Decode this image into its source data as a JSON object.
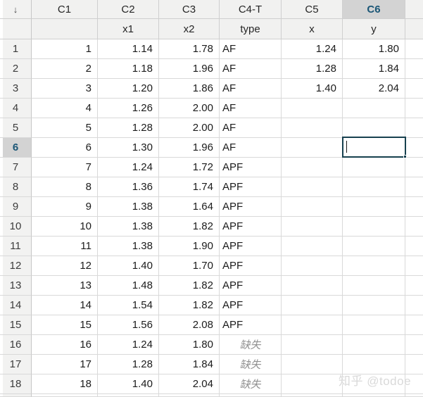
{
  "worksheet": {
    "entry_direction_icon": "↓",
    "columns": [
      {
        "id": "C1",
        "name": "",
        "selected": false
      },
      {
        "id": "C2",
        "name": "x1",
        "selected": false
      },
      {
        "id": "C3",
        "name": "x2",
        "selected": false
      },
      {
        "id": "C4-T",
        "name": "type",
        "selected": false
      },
      {
        "id": "C5",
        "name": "x",
        "selected": false
      },
      {
        "id": "C6",
        "name": "y",
        "selected": true
      }
    ],
    "selected_row": 6,
    "selected_column": "C6",
    "missing_label": "缺失",
    "active_cell": {
      "row": 6,
      "column": "C6",
      "value": ""
    },
    "rows": [
      {
        "n": "1",
        "c1": "1",
        "c2": "1.14",
        "c3": "1.78",
        "c4": "AF",
        "c5": "1.24",
        "c6": "1.80"
      },
      {
        "n": "2",
        "c1": "2",
        "c2": "1.18",
        "c3": "1.96",
        "c4": "AF",
        "c5": "1.28",
        "c6": "1.84"
      },
      {
        "n": "3",
        "c1": "3",
        "c2": "1.20",
        "c3": "1.86",
        "c4": "AF",
        "c5": "1.40",
        "c6": "2.04"
      },
      {
        "n": "4",
        "c1": "4",
        "c2": "1.26",
        "c3": "2.00",
        "c4": "AF",
        "c5": "",
        "c6": ""
      },
      {
        "n": "5",
        "c1": "5",
        "c2": "1.28",
        "c3": "2.00",
        "c4": "AF",
        "c5": "",
        "c6": ""
      },
      {
        "n": "6",
        "c1": "6",
        "c2": "1.30",
        "c3": "1.96",
        "c4": "AF",
        "c5": "",
        "c6": ""
      },
      {
        "n": "7",
        "c1": "7",
        "c2": "1.24",
        "c3": "1.72",
        "c4": "APF",
        "c5": "",
        "c6": ""
      },
      {
        "n": "8",
        "c1": "8",
        "c2": "1.36",
        "c3": "1.74",
        "c4": "APF",
        "c5": "",
        "c6": ""
      },
      {
        "n": "9",
        "c1": "9",
        "c2": "1.38",
        "c3": "1.64",
        "c4": "APF",
        "c5": "",
        "c6": ""
      },
      {
        "n": "10",
        "c1": "10",
        "c2": "1.38",
        "c3": "1.82",
        "c4": "APF",
        "c5": "",
        "c6": ""
      },
      {
        "n": "11",
        "c1": "11",
        "c2": "1.38",
        "c3": "1.90",
        "c4": "APF",
        "c5": "",
        "c6": ""
      },
      {
        "n": "12",
        "c1": "12",
        "c2": "1.40",
        "c3": "1.70",
        "c4": "APF",
        "c5": "",
        "c6": ""
      },
      {
        "n": "13",
        "c1": "13",
        "c2": "1.48",
        "c3": "1.82",
        "c4": "APF",
        "c5": "",
        "c6": ""
      },
      {
        "n": "14",
        "c1": "14",
        "c2": "1.54",
        "c3": "1.82",
        "c4": "APF",
        "c5": "",
        "c6": ""
      },
      {
        "n": "15",
        "c1": "15",
        "c2": "1.56",
        "c3": "2.08",
        "c4": "APF",
        "c5": "",
        "c6": ""
      },
      {
        "n": "16",
        "c1": "16",
        "c2": "1.24",
        "c3": "1.80",
        "c4": null,
        "c5": "",
        "c6": ""
      },
      {
        "n": "17",
        "c1": "17",
        "c2": "1.28",
        "c3": "1.84",
        "c4": null,
        "c5": "",
        "c6": ""
      },
      {
        "n": "18",
        "c1": "18",
        "c2": "1.40",
        "c3": "2.04",
        "c4": null,
        "c5": "",
        "c6": ""
      }
    ]
  },
  "watermark": "知乎 @todoe",
  "colors": {
    "accent_teal": "#1a5676",
    "active_cell_border": "#17414f",
    "header_bg": "#f1f1f0",
    "selected_header_bg": "#d3d3d3",
    "gridline": "#d9d9d9",
    "missing_text": "#909090",
    "watermark_text": "#d9d9d9"
  }
}
